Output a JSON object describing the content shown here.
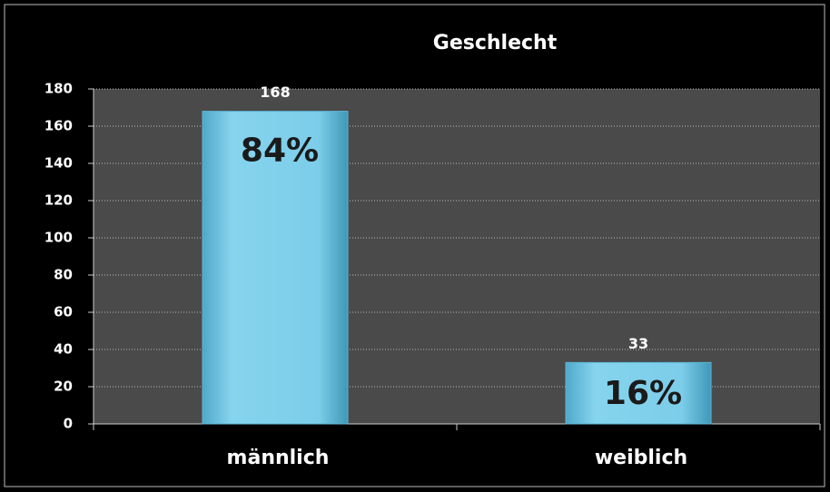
{
  "chart_data": {
    "type": "bar",
    "title": "Geschlecht",
    "categories": [
      "männlich",
      "weiblich"
    ],
    "values": [
      168,
      33
    ],
    "percent_labels": [
      "84%",
      "16%"
    ],
    "color": "#7fcfea",
    "ylim": [
      0,
      180
    ],
    "yticks": [
      0,
      20,
      40,
      60,
      80,
      100,
      120,
      140,
      160,
      180
    ],
    "grid": true
  }
}
